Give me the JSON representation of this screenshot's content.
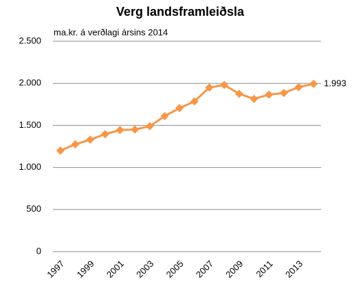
{
  "chart_data": {
    "type": "line",
    "title": "Verg landsframleiðsla",
    "subtitle": "ma.kr. á verðlagi ársins 2014",
    "categories": [
      "1997",
      null,
      "1999",
      null,
      "2001",
      null,
      "2003",
      null,
      "2005",
      null,
      "2007",
      null,
      "2009",
      null,
      "2011",
      null,
      "2013",
      null
    ],
    "series": [
      {
        "name": "Verg landsframleiðsla",
        "color": "#f79646",
        "values": [
          1200,
          1275,
          1330,
          1395,
          1445,
          1450,
          1490,
          1610,
          1705,
          1785,
          1950,
          1980,
          1875,
          1815,
          1865,
          1885,
          1955,
          1993
        ],
        "value_labels": [
          null,
          null,
          null,
          null,
          null,
          null,
          null,
          null,
          null,
          null,
          null,
          null,
          null,
          null,
          null,
          null,
          null,
          "1.993"
        ]
      }
    ],
    "ylim": [
      0,
      2500
    ],
    "yticks": [
      0,
      500,
      {
        "value": 1000,
        "label": "1.000"
      },
      {
        "value": 1500,
        "label": "1.500"
      },
      {
        "value": 2000,
        "label": "2.000"
      },
      {
        "value": 2500,
        "label": "2.500"
      }
    ],
    "grid": true
  }
}
